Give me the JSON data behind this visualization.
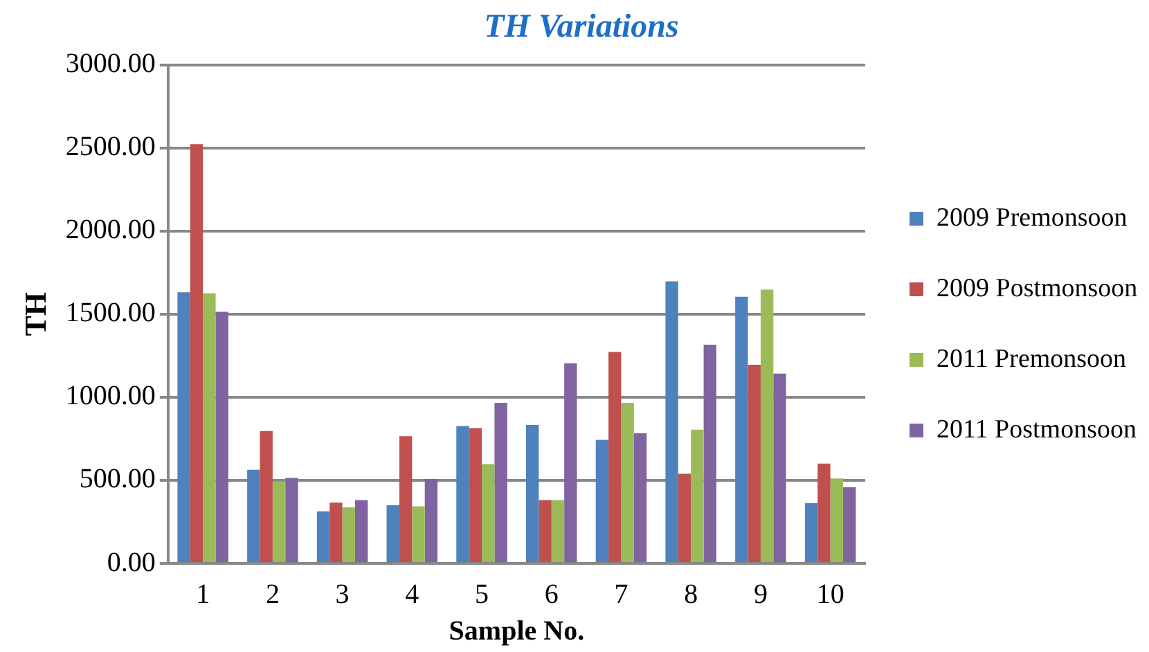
{
  "chart_data": {
    "type": "bar",
    "title": "TH Variations",
    "xlabel": "Sample No.",
    "ylabel": "TH",
    "categories": [
      "1",
      "2",
      "3",
      "4",
      "5",
      "6",
      "7",
      "8",
      "9",
      "10"
    ],
    "series": [
      {
        "name": "2009 Premonsoon",
        "color": "#4f81bd",
        "values": [
          1631,
          563,
          313,
          350,
          827,
          833,
          743,
          1697,
          1604,
          362
        ]
      },
      {
        "name": "2009 Postmonsoon",
        "color": "#c0504d",
        "values": [
          2523,
          796,
          365,
          765,
          814,
          381,
          1272,
          539,
          1195,
          601
        ]
      },
      {
        "name": "2011 Premonsoon",
        "color": "#9bbb59",
        "values": [
          1625,
          492,
          337,
          344,
          598,
          381,
          966,
          805,
          1647,
          511
        ]
      },
      {
        "name": "2011 Postmonsoon",
        "color": "#8064a2",
        "values": [
          1514,
          514,
          381,
          508,
          966,
          1204,
          783,
          1316,
          1142,
          458
        ]
      }
    ],
    "ylim": [
      0,
      3000
    ],
    "yticks": [
      {
        "value": 0,
        "label": "0.00"
      },
      {
        "value": 500,
        "label": "500.00"
      },
      {
        "value": 1000,
        "label": "1000.00"
      },
      {
        "value": 1500,
        "label": "1500.00"
      },
      {
        "value": 2000,
        "label": "2000.00"
      },
      {
        "value": 2500,
        "label": "2500.00"
      },
      {
        "value": 3000,
        "label": "3000.00"
      }
    ],
    "grid": "y",
    "legend": "right"
  }
}
